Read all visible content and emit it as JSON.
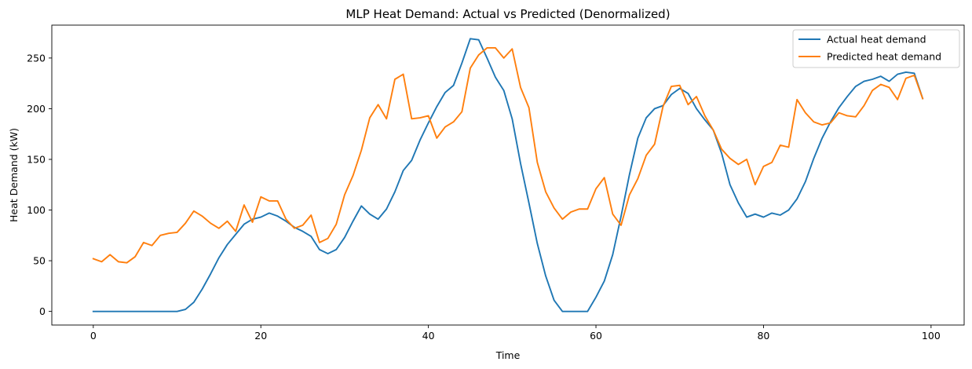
{
  "chart_data": {
    "type": "line",
    "title": "MLP Heat Demand: Actual vs Predicted (Denormalized)",
    "xlabel": "Time",
    "ylabel": "Heat Demand (kW)",
    "xlim": [
      -4.95,
      103.95
    ],
    "ylim": [
      -13.45,
      282.45
    ],
    "xticks": [
      0,
      20,
      40,
      60,
      80,
      100
    ],
    "yticks": [
      0,
      50,
      100,
      150,
      200,
      250
    ],
    "legend_position": "top-right",
    "grid": false,
    "series": [
      {
        "name": "Actual heat demand",
        "color": "#1f77b4",
        "values": [
          0,
          0,
          0,
          0,
          0,
          0,
          0,
          0,
          0,
          0,
          0,
          2,
          9,
          22,
          37,
          53,
          66,
          76,
          86,
          91,
          93,
          97,
          94,
          89,
          83,
          79,
          74,
          61,
          57,
          61,
          73,
          89,
          104,
          96,
          91,
          101,
          118,
          139,
          149,
          169,
          186,
          202,
          216,
          223,
          245,
          269,
          268,
          250,
          231,
          218,
          190,
          146,
          107,
          67,
          35,
          11,
          0,
          0,
          0,
          0,
          14,
          30,
          56,
          94,
          135,
          171,
          191,
          200,
          203,
          214,
          220,
          215,
          200,
          189,
          179,
          156,
          125,
          107,
          93,
          96,
          93,
          97,
          95,
          100,
          111,
          128,
          151,
          171,
          187,
          201,
          212,
          222,
          227,
          229,
          232,
          227,
          234,
          236,
          235,
          210
        ]
      },
      {
        "name": "Predicted heat demand",
        "color": "#ff7f0e",
        "values": [
          52,
          49,
          56,
          49,
          48,
          54,
          68,
          65,
          75,
          77,
          78,
          87,
          99,
          94,
          87,
          82,
          89,
          79,
          105,
          88,
          113,
          109,
          109,
          91,
          82,
          85,
          95,
          68,
          72,
          86,
          115,
          134,
          159,
          191,
          204,
          190,
          229,
          234,
          190,
          191,
          193,
          171,
          182,
          187,
          197,
          240,
          253,
          260,
          260,
          250,
          259,
          221,
          201,
          147,
          118,
          102,
          91,
          98,
          101,
          101,
          121,
          132,
          96,
          85,
          115,
          131,
          154,
          165,
          202,
          222,
          223,
          204,
          212,
          193,
          179,
          160,
          151,
          145,
          150,
          125,
          143,
          147,
          164,
          162,
          209,
          196,
          187,
          184,
          186,
          196,
          193,
          192,
          203,
          218,
          224,
          221,
          209,
          230,
          233,
          210
        ]
      }
    ]
  }
}
